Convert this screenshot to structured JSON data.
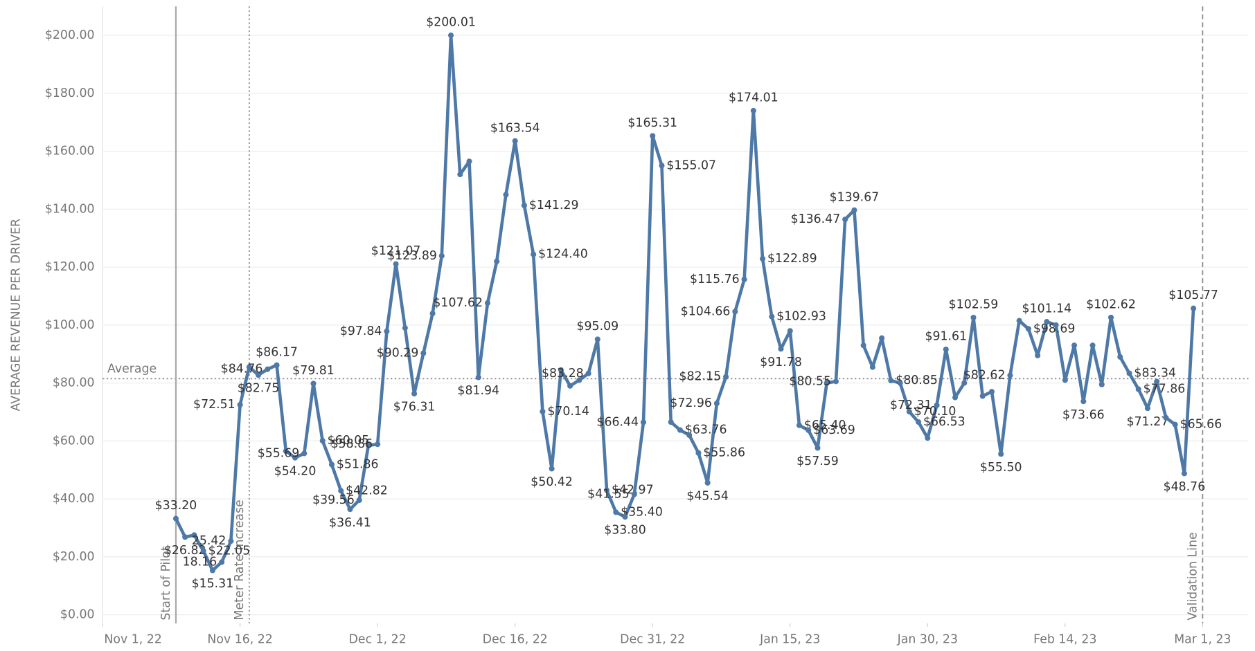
{
  "chart_data": {
    "type": "line",
    "y_axis_label": "AVERAGE REVENUE PER DRIVER",
    "x": [
      "2022-11-09",
      "2022-11-10",
      "2022-11-11",
      "2022-11-12",
      "2022-11-13",
      "2022-11-14",
      "2022-11-15",
      "2022-11-16",
      "2022-11-17",
      "2022-11-18",
      "2022-11-19",
      "2022-11-20",
      "2022-11-21",
      "2022-11-22",
      "2022-11-23",
      "2022-11-24",
      "2022-11-25",
      "2022-11-26",
      "2022-11-27",
      "2022-11-28",
      "2022-11-29",
      "2022-11-30",
      "2022-12-01",
      "2022-12-02",
      "2022-12-03",
      "2022-12-04",
      "2022-12-05",
      "2022-12-06",
      "2022-12-07",
      "2022-12-08",
      "2022-12-09",
      "2022-12-10",
      "2022-12-11",
      "2022-12-12",
      "2022-12-13",
      "2022-12-14",
      "2022-12-15",
      "2022-12-16",
      "2022-12-17",
      "2022-12-18",
      "2022-12-19",
      "2022-12-20",
      "2022-12-21",
      "2022-12-22",
      "2022-12-23",
      "2022-12-24",
      "2022-12-25",
      "2022-12-26",
      "2022-12-27",
      "2022-12-28",
      "2022-12-29",
      "2022-12-30",
      "2022-12-31",
      "2023-01-01",
      "2023-01-02",
      "2023-01-03",
      "2023-01-04",
      "2023-01-05",
      "2023-01-06",
      "2023-01-07",
      "2023-01-08",
      "2023-01-09",
      "2023-01-10",
      "2023-01-11",
      "2023-01-12",
      "2023-01-13",
      "2023-01-14",
      "2023-01-15",
      "2023-01-16",
      "2023-01-17",
      "2023-01-18",
      "2023-01-19",
      "2023-01-20",
      "2023-01-21",
      "2023-01-22",
      "2023-01-23",
      "2023-01-24",
      "2023-01-25",
      "2023-01-26",
      "2023-01-27",
      "2023-01-28",
      "2023-01-29",
      "2023-01-30",
      "2023-01-31",
      "2023-02-01",
      "2023-02-02",
      "2023-02-03",
      "2023-02-04",
      "2023-02-05",
      "2023-02-06",
      "2023-02-07",
      "2023-02-08",
      "2023-02-09",
      "2023-02-10",
      "2023-02-11",
      "2023-02-12",
      "2023-02-13",
      "2023-02-14",
      "2023-02-15",
      "2023-02-16",
      "2023-02-17",
      "2023-02-18",
      "2023-02-19",
      "2023-02-20",
      "2023-02-21",
      "2023-02-22",
      "2023-02-23",
      "2023-02-24",
      "2023-02-25",
      "2023-02-26",
      "2023-02-27",
      "2023-02-28"
    ],
    "series": [
      {
        "name": "Average Revenue per Driver",
        "color": "#4e79a7",
        "values": [
          33.2,
          26.82,
          27.5,
          22.05,
          15.31,
          18.16,
          25.42,
          72.51,
          85.5,
          82.75,
          84.76,
          86.17,
          56.5,
          54.2,
          55.69,
          79.81,
          60.05,
          51.86,
          42.82,
          36.41,
          39.56,
          58.5,
          58.86,
          97.84,
          121.07,
          99,
          76.31,
          90.29,
          104,
          123.89,
          200.01,
          152,
          156.5,
          81.94,
          107.62,
          122,
          145,
          163.54,
          141.29,
          124.4,
          70.14,
          50.42,
          84.5,
          79,
          81,
          83.28,
          95.09,
          42.97,
          35.4,
          33.8,
          41.55,
          66.44,
          165.31,
          155.07,
          66.5,
          63.76,
          62,
          55.86,
          45.54,
          72.96,
          82.15,
          104.66,
          115.76,
          174.01,
          122.89,
          102.93,
          91.78,
          98,
          65.4,
          63.69,
          57.59,
          80,
          80.55,
          136.47,
          139.67,
          93,
          85.5,
          95.5,
          80.85,
          80,
          70.1,
          66.53,
          61,
          72.31,
          91.61,
          75,
          80,
          102.59,
          75.5,
          77,
          55.5,
          82.62,
          101.5,
          98.69,
          89.5,
          101.14,
          100,
          81,
          93,
          73.66,
          93,
          79.5,
          102.62,
          89,
          83.34,
          77.86,
          71.27,
          80.5,
          68,
          65.66,
          48.76,
          105.77
        ],
        "value_labels": [
          "$33.20",
          "$26.82",
          null,
          "$22.05",
          "$15.31",
          "18.16",
          "25.42",
          "$72.51",
          null,
          "$82.75",
          "$84.76",
          "$86.17",
          null,
          "$54.20",
          "$55.69",
          "$79.81",
          "$60.05",
          "$51.86",
          "$42.82",
          "$36.41",
          "$39.56",
          null,
          "$58.86",
          "$97.84",
          "$121.07",
          null,
          "$76.31",
          "$90.29",
          null,
          "$123.89",
          "$200.01",
          null,
          null,
          "$81.94",
          "$107.62",
          null,
          null,
          "$163.54",
          "$141.29",
          "$124.40",
          "$70.14",
          "$50.42",
          null,
          null,
          null,
          "$83.28",
          "$95.09",
          "$42.97",
          "$35.40",
          "$33.80",
          "$41.55",
          "$66.44",
          "$165.31",
          "$155.07",
          null,
          "$63.76",
          null,
          "$55.86",
          "$45.54",
          "$72.96",
          "$82.15",
          "$104.66",
          "$115.76",
          "$174.01",
          "$122.89",
          "$102.93",
          "$91.78",
          null,
          "$65.40",
          "$63.69",
          "$57.59",
          null,
          "$80.55",
          "$136.47",
          "$139.67",
          null,
          null,
          null,
          "$80.85",
          null,
          "$70.10",
          "$66.53",
          null,
          "$72.31",
          "$91.61",
          null,
          null,
          "$102.59",
          null,
          null,
          "$55.50",
          "$82.62",
          null,
          "$98.69",
          null,
          "$101.14",
          null,
          null,
          null,
          "$73.66",
          null,
          null,
          "$102.62",
          null,
          "$83.34",
          "$77.86",
          "$71.27",
          null,
          null,
          "$65.66",
          "$48.76",
          "$105.77"
        ]
      }
    ],
    "xlim": [
      "2022-11-01",
      "2023-03-06"
    ],
    "xticks": [
      {
        "value": "2022-11-01",
        "label": "Nov 1, 22"
      },
      {
        "value": "2022-11-16",
        "label": "Nov 16, 22"
      },
      {
        "value": "2022-12-01",
        "label": "Dec 1, 22"
      },
      {
        "value": "2022-12-16",
        "label": "Dec 16, 22"
      },
      {
        "value": "2022-12-31",
        "label": "Dec 31, 22"
      },
      {
        "value": "2023-01-15",
        "label": "Jan 15, 23"
      },
      {
        "value": "2023-01-30",
        "label": "Jan 30, 23"
      },
      {
        "value": "2023-02-14",
        "label": "Feb 14, 23"
      },
      {
        "value": "2023-03-01",
        "label": "Mar 1, 23"
      }
    ],
    "ylim": [
      -3,
      210
    ],
    "yticks": [
      {
        "value": 0,
        "label": "$0.00"
      },
      {
        "value": 20,
        "label": "$20.00"
      },
      {
        "value": 40,
        "label": "$40.00"
      },
      {
        "value": 60,
        "label": "$60.00"
      },
      {
        "value": 80,
        "label": "$80.00"
      },
      {
        "value": 100,
        "label": "$100.00"
      },
      {
        "value": 120,
        "label": "$120.00"
      },
      {
        "value": 140,
        "label": "$140.00"
      },
      {
        "value": 160,
        "label": "$160.00"
      },
      {
        "value": 180,
        "label": "$180.00"
      },
      {
        "value": 200,
        "label": "$200.00"
      }
    ],
    "grid": true,
    "reference_lines": [
      {
        "axis": "y",
        "value": 81.5,
        "label": "Average",
        "style": "dotted"
      },
      {
        "axis": "x",
        "value": "2022-11-09",
        "label": "Start of Pilot",
        "style": "solid"
      },
      {
        "axis": "x",
        "value": "2022-11-17",
        "label": "Meter Rate Increase",
        "style": "dotted"
      },
      {
        "axis": "x",
        "value": "2023-03-01",
        "label": "Validation Line",
        "style": "dashed"
      }
    ]
  }
}
